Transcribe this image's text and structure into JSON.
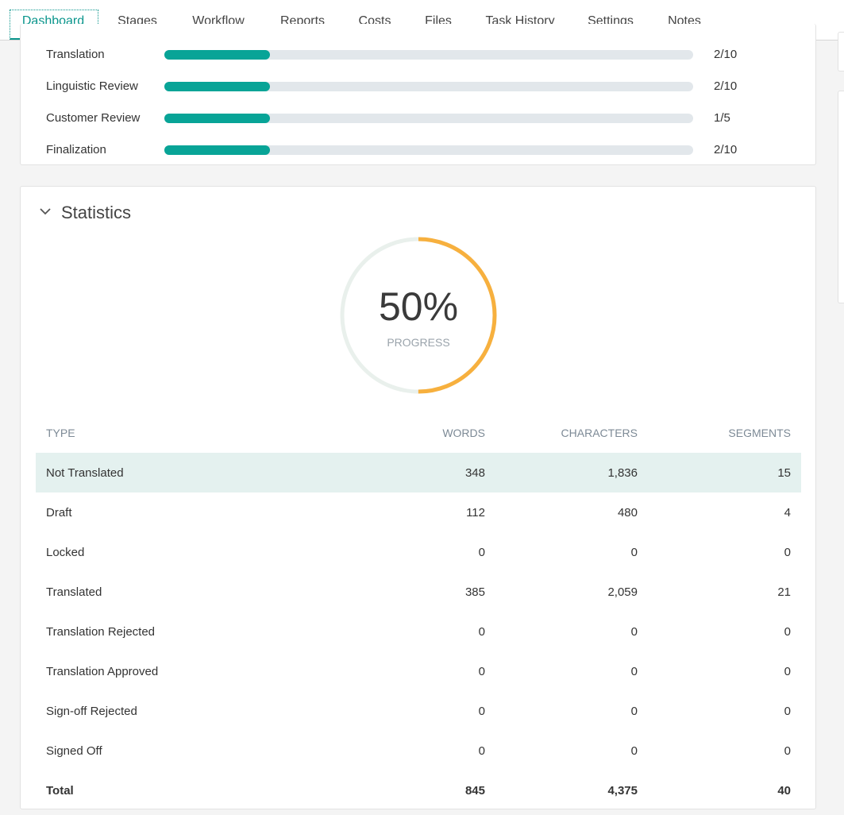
{
  "tabs": [
    "Dashboard",
    "Stages",
    "Workflow",
    "Reports",
    "Costs",
    "Files",
    "Task History",
    "Settings",
    "Notes"
  ],
  "active_tab": 0,
  "stages": [
    {
      "name": "Translation",
      "done": 2,
      "total": 10,
      "label": "2/10"
    },
    {
      "name": "Linguistic Review",
      "done": 2,
      "total": 10,
      "label": "2/10"
    },
    {
      "name": "Customer Review",
      "done": 1,
      "total": 5,
      "label": "1/5"
    },
    {
      "name": "Finalization",
      "done": 2,
      "total": 10,
      "label": "2/10"
    }
  ],
  "statistics": {
    "title": "Statistics",
    "progress": {
      "value": 50,
      "label": "50%",
      "caption": "PROGRESS"
    },
    "table": {
      "columns": [
        "TYPE",
        "WORDS",
        "CHARACTERS",
        "SEGMENTS"
      ],
      "rows": [
        [
          "Not Translated",
          "348",
          "1,836",
          "15"
        ],
        [
          "Draft",
          "112",
          "480",
          "4"
        ],
        [
          "Locked",
          "0",
          "0",
          "0"
        ],
        [
          "Translated",
          "385",
          "2,059",
          "21"
        ],
        [
          "Translation Rejected",
          "0",
          "0",
          "0"
        ],
        [
          "Translation Approved",
          "0",
          "0",
          "0"
        ],
        [
          "Sign-off Rejected",
          "0",
          "0",
          "0"
        ],
        [
          "Signed Off",
          "0",
          "0",
          "0"
        ]
      ],
      "total": [
        "Total",
        "845",
        "4,375",
        "40"
      ]
    }
  }
}
